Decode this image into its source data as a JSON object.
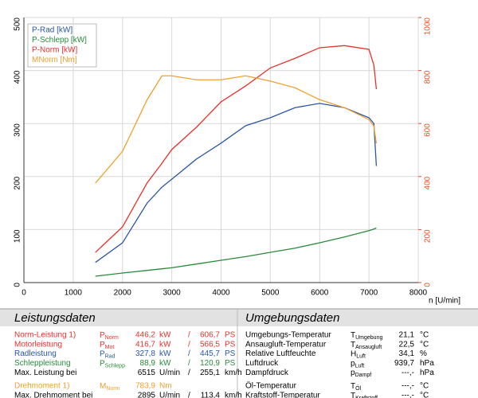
{
  "chart_data": {
    "type": "line",
    "x_label": "n [U/min]",
    "x": [
      1450,
      2000,
      2500,
      2800,
      3000,
      3500,
      4000,
      4500,
      5000,
      5500,
      6000,
      6500,
      7000,
      7100,
      7150
    ],
    "xlim": [
      0,
      8000
    ],
    "xticks": [
      0,
      1000,
      2000,
      3000,
      4000,
      5000,
      6000,
      7000,
      8000
    ],
    "ylim": [
      0,
      500
    ],
    "yticks": [
      0,
      100,
      200,
      300,
      400,
      500
    ],
    "y2lim": [
      0,
      1000
    ],
    "y2ticks": [
      0,
      200,
      400,
      600,
      800,
      1000
    ],
    "grid": true,
    "legend": "upper left",
    "series": [
      {
        "name": "P-Rad [kW]",
        "color": "#2a56a8",
        "values": [
          38,
          75,
          150,
          180,
          195,
          233,
          263,
          296,
          311,
          330,
          338,
          330,
          311,
          300,
          220
        ]
      },
      {
        "name": "P-Schlepp [kW]",
        "color": "#2a8a3a",
        "values": [
          12,
          18,
          23,
          26,
          28,
          35,
          42,
          49,
          57,
          65,
          75,
          86,
          98,
          101,
          103
        ]
      },
      {
        "name": "P-Norm [kW]",
        "color": "#e8312a",
        "values": [
          57,
          105,
          188,
          225,
          251,
          293,
          341,
          371,
          405,
          423,
          443,
          447,
          440,
          410,
          365
        ]
      },
      {
        "name": "MNorm [Nm]",
        "color": "#f0a030",
        "axis": "y2",
        "values": [
          375,
          495,
          690,
          780,
          780,
          765,
          765,
          780,
          760,
          735,
          690,
          660,
          615,
          590,
          525
        ]
      }
    ]
  },
  "tables": {
    "left": {
      "title": "Leistungsdaten",
      "rows": [
        {
          "label": "Norm-Leistung 1)",
          "symbol": {
            "main": "P",
            "sub": "Norm"
          },
          "value": "446,2",
          "unit": "kW",
          "sep": "/",
          "value2": "606,7",
          "unit2": "PS",
          "color": "#e8312a"
        },
        {
          "label": "Motorleistung",
          "symbol": {
            "main": "P",
            "sub": "Mot"
          },
          "value": "416,7",
          "unit": "kW",
          "sep": "/",
          "value2": "566,5",
          "unit2": "PS",
          "color": "#e8312a"
        },
        {
          "label": "Radleistung",
          "symbol": {
            "main": "P",
            "sub": "Rad"
          },
          "value": "327,8",
          "unit": "kW",
          "sep": "/",
          "value2": "445,7",
          "unit2": "PS",
          "color": "#2a56a8"
        },
        {
          "label": "Schleppleistung",
          "symbol": {
            "main": "P",
            "sub": "Schlepp"
          },
          "value": "88,9",
          "unit": "kW",
          "sep": "/",
          "value2": "120,9",
          "unit2": "PS",
          "color": "#2a8a3a"
        },
        {
          "label": "Max. Leistung bei",
          "value": "6515",
          "unit": "U/min",
          "sep": "/",
          "value2": "255,1",
          "unit2": "km/h",
          "color": "#000000"
        },
        {
          "label": "Drehmoment 1)",
          "symbol": {
            "main": "M",
            "sub": "Norm"
          },
          "value": "783,9",
          "unit": "Nm",
          "color": "#f0a030"
        },
        {
          "label": "Max. Drehmoment bei",
          "value": "2895",
          "unit": "U/min",
          "sep": "/",
          "value2": "113,4",
          "unit2": "km/h",
          "color": "#000000"
        }
      ]
    },
    "right": {
      "title": "Umgebungsdaten",
      "rows": [
        {
          "label": "Umgebungs-Temperatur",
          "symbol": {
            "main": "T",
            "sub": "Umgebung"
          },
          "value": "21,1",
          "unit": "°C"
        },
        {
          "label": "Ansaugluft-Temperatur",
          "symbol": {
            "main": "T",
            "sub": "Ansaugluft"
          },
          "value": "22,5",
          "unit": "°C"
        },
        {
          "label": "Relative Luftfeuchte",
          "symbol": {
            "main": "H",
            "sub": "Luft"
          },
          "value": "34,1",
          "unit": "%"
        },
        {
          "label": "Luftdruck",
          "symbol": {
            "main": "p",
            "sub": "Luft"
          },
          "value": "939,7",
          "unit": "hPa"
        },
        {
          "label": "Dampfdruck",
          "symbol": {
            "main": "p",
            "sub": "Dampf"
          },
          "value": "---,-",
          "unit": "hPa"
        },
        {
          "label": "Öl-Temperatur",
          "symbol": {
            "main": "T",
            "sub": "Öl"
          },
          "value": "---,-",
          "unit": "°C"
        },
        {
          "label": "Kraftstoff-Temperatur",
          "symbol": {
            "main": "T",
            "sub": "Kraftstoff"
          },
          "value": "---,-",
          "unit": "°C"
        }
      ]
    }
  }
}
